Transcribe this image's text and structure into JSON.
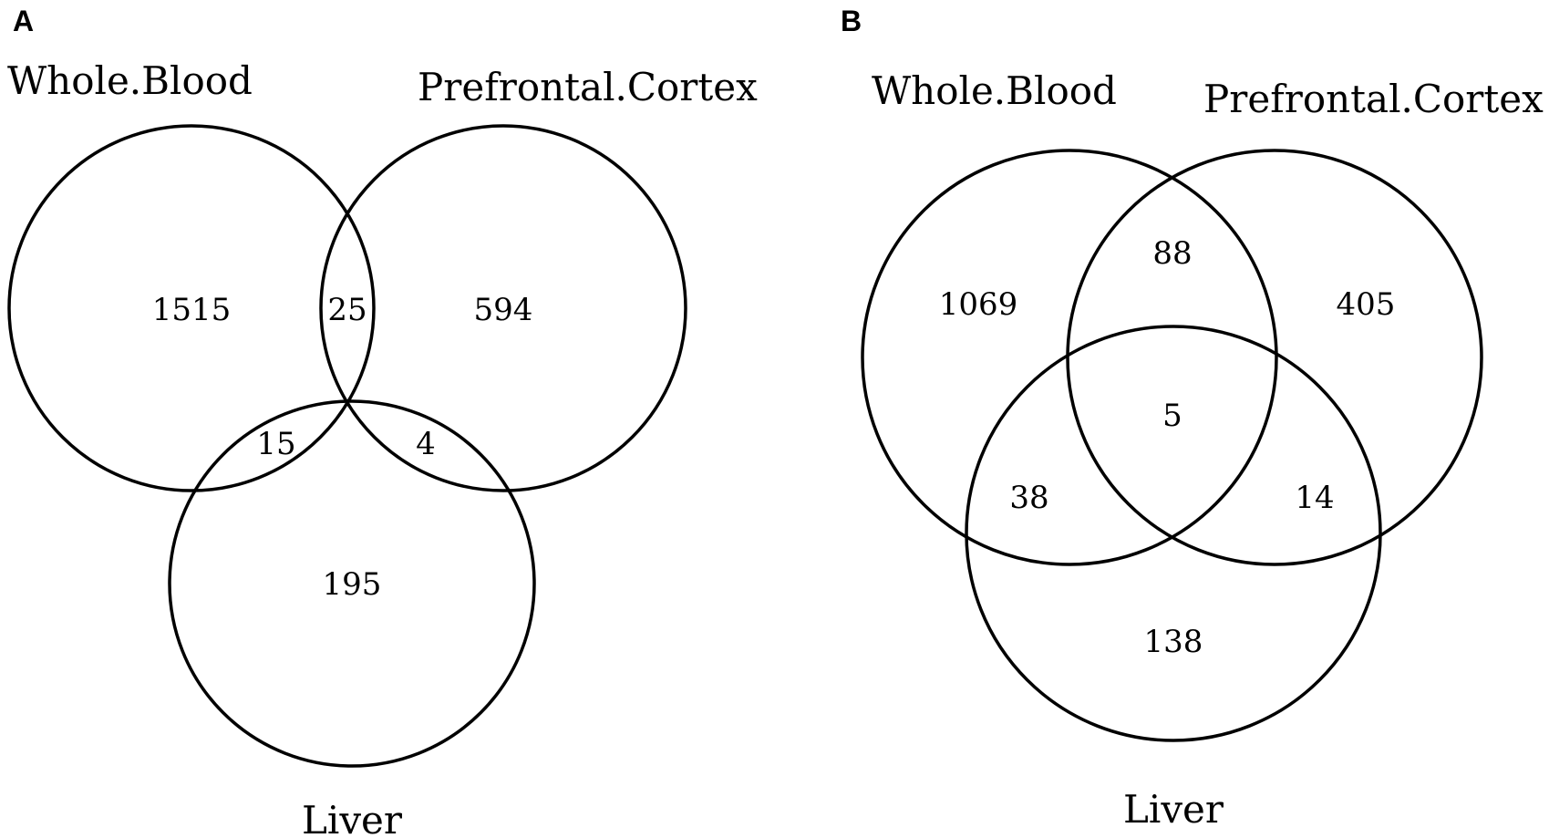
{
  "panels": [
    {
      "letter": "A",
      "sets": {
        "whole_blood": "Whole.Blood",
        "prefrontal_cortex": "Prefrontal.Cortex",
        "liver": "Liver"
      },
      "counts": {
        "whole_blood_only": "1515",
        "blood_cortex": "25",
        "cortex_only": "594",
        "blood_liver": "15",
        "cortex_liver": "4",
        "liver_only": "195"
      }
    },
    {
      "letter": "B",
      "sets": {
        "whole_blood": "Whole.Blood",
        "prefrontal_cortex": "Prefrontal.Cortex",
        "liver": "Liver"
      },
      "counts": {
        "whole_blood_only": "1069",
        "blood_cortex": "88",
        "cortex_only": "405",
        "all_three": "5",
        "blood_liver": "38",
        "cortex_liver": "14",
        "liver_only": "138"
      }
    }
  ],
  "colors": {
    "stroke": "#000000",
    "background": "#ffffff"
  }
}
